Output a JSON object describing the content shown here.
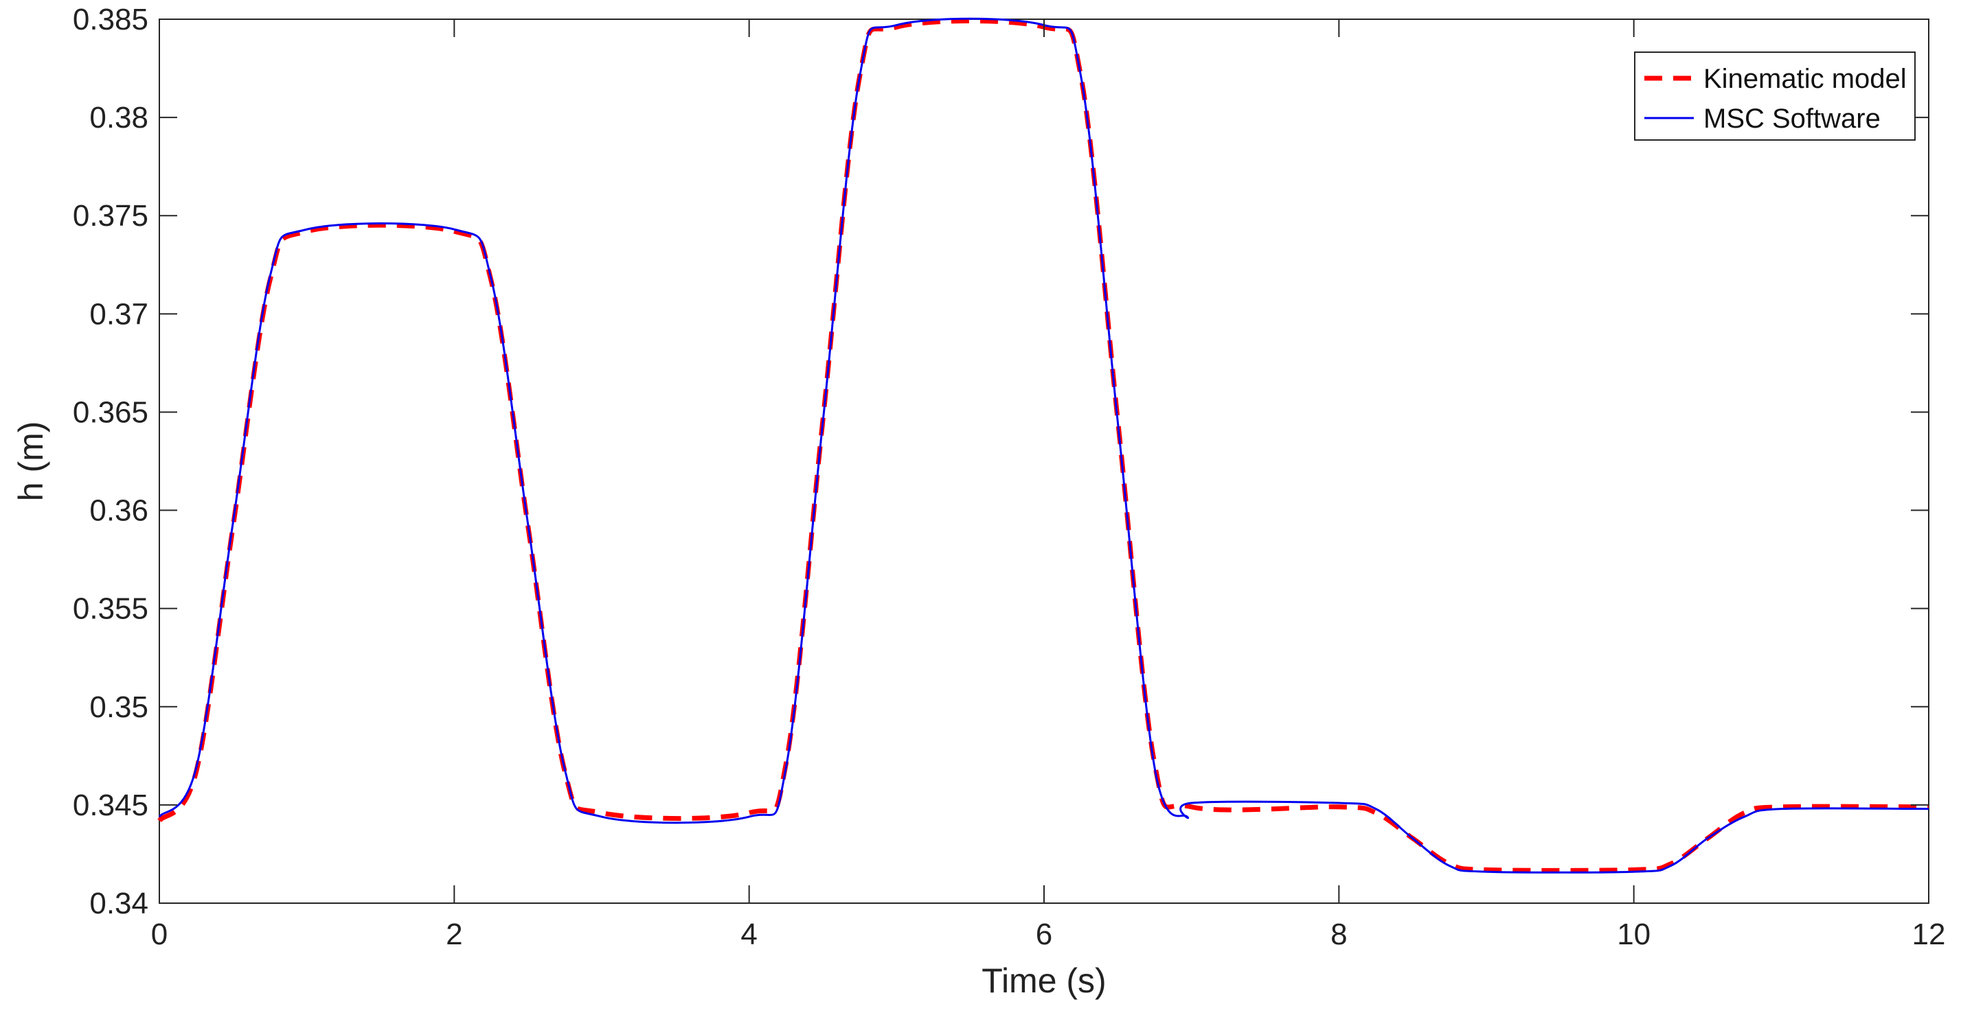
{
  "chart_data": {
    "type": "line",
    "title": "",
    "xlabel": "Time (s)",
    "ylabel": "h (m)",
    "xlim": [
      0,
      12
    ],
    "ylim": [
      0.34,
      0.385
    ],
    "xticks": [
      0,
      2,
      4,
      6,
      8,
      10,
      12
    ],
    "yticks": [
      0.34,
      0.345,
      0.35,
      0.355,
      0.36,
      0.365,
      0.37,
      0.375,
      0.38,
      0.385
    ],
    "xtick_labels": [
      "0",
      "2",
      "4",
      "6",
      "8",
      "10",
      "12"
    ],
    "ytick_labels": [
      "0.34",
      "0.345",
      "0.35",
      "0.355",
      "0.36",
      "0.365",
      "0.37",
      "0.375",
      "0.38",
      "0.385"
    ],
    "grid": false,
    "legend_position": "top-right",
    "series": [
      {
        "name": "Kinematic model",
        "color": "#ff0000",
        "style": "dashed",
        "x": [
          0,
          0.25,
          0.5,
          0.75,
          1.0,
          2.0,
          2.25,
          2.5,
          2.75,
          3.0,
          4.0,
          4.25,
          4.5,
          4.75,
          5.0,
          6.0,
          6.25,
          6.5,
          6.75,
          7.0,
          8.0,
          8.25,
          8.5,
          8.75,
          9.0,
          10.0,
          10.25,
          10.5,
          10.75,
          11.0,
          12.0
        ],
        "y": [
          0.3442,
          0.3467,
          0.3592,
          0.3717,
          0.3742,
          0.3742,
          0.3717,
          0.3592,
          0.3467,
          0.3446,
          0.3446,
          0.3471,
          0.3646,
          0.3821,
          0.3846,
          0.3846,
          0.3821,
          0.3646,
          0.3471,
          0.3449,
          0.3449,
          0.3446,
          0.3433,
          0.342,
          0.3417,
          0.3417,
          0.342,
          0.3433,
          0.3446,
          0.3449,
          0.3449
        ]
      },
      {
        "name": "MSC Software",
        "color": "#0000ee",
        "style": "solid",
        "x": [
          0,
          0.25,
          0.5,
          0.75,
          1.0,
          2.0,
          2.25,
          2.5,
          2.75,
          3.0,
          4.0,
          4.25,
          4.5,
          4.75,
          5.0,
          6.0,
          6.25,
          6.5,
          6.75,
          6.97,
          7.0,
          8.0,
          8.25,
          8.5,
          8.75,
          9.0,
          10.0,
          10.25,
          10.5,
          10.75,
          11.0,
          12.0
        ],
        "y": [
          0.3444,
          0.3469,
          0.3594,
          0.3719,
          0.3743,
          0.3743,
          0.3718,
          0.3593,
          0.3468,
          0.3444,
          0.3444,
          0.3469,
          0.3645,
          0.3821,
          0.3847,
          0.3847,
          0.3821,
          0.3645,
          0.3469,
          0.3444,
          0.3451,
          0.3451,
          0.3448,
          0.3433,
          0.3419,
          0.3416,
          0.3416,
          0.3419,
          0.3433,
          0.3444,
          0.3448,
          0.3448
        ]
      }
    ]
  }
}
